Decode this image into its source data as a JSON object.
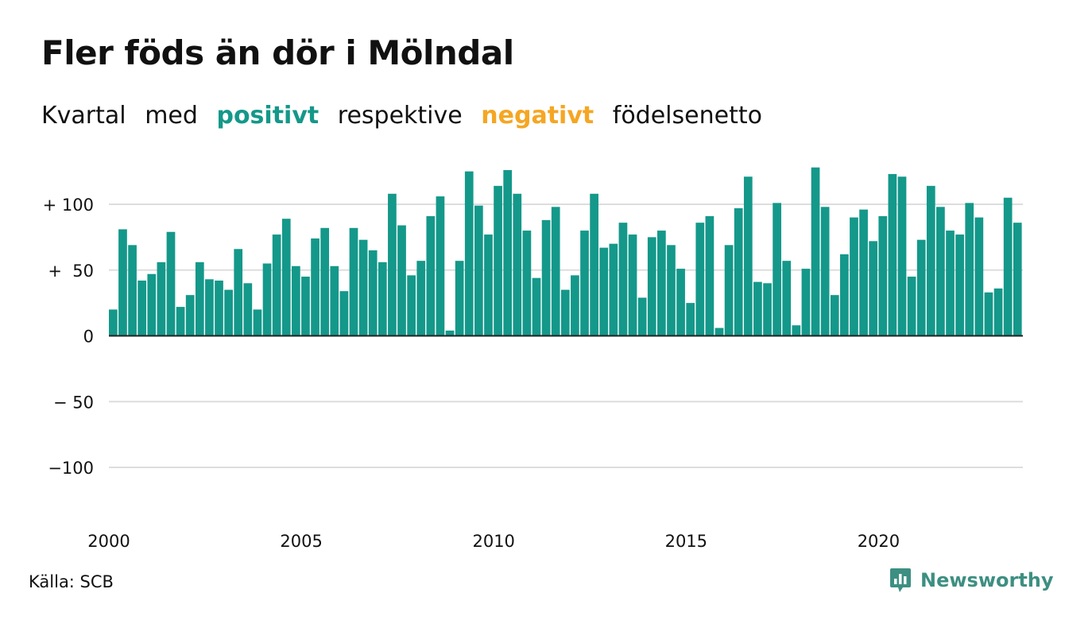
{
  "title": "Fler föds än dör i Mölndal",
  "subtitle": {
    "part1": "Kvartal",
    "part2": "med",
    "positive_word": "positivt",
    "part3": "respektive",
    "negative_word": "negativt",
    "part4": "födelsenetto"
  },
  "colors": {
    "positive": "#14988a",
    "negative": "#f5a623",
    "grid": "#dddddd",
    "axis": "#222222",
    "text": "#111111"
  },
  "source": "Källa: SCB",
  "brand": {
    "name": "Newsworthy",
    "icon": "newsworthy-logo-icon"
  },
  "chart_data": {
    "type": "bar",
    "title": "Fler föds än dör i Mölndal",
    "xlabel": "",
    "ylabel": "",
    "ylim": [
      -140,
      140
    ],
    "y_ticks": [
      {
        "value": 100,
        "label": "+ 100"
      },
      {
        "value": 50,
        "label": "+  50"
      },
      {
        "value": 0,
        "label": "0"
      },
      {
        "value": -50,
        "label": "− 50"
      },
      {
        "value": -100,
        "label": "−100"
      }
    ],
    "x_ticks": [
      {
        "year": 2000,
        "label": "2000"
      },
      {
        "year": 2005,
        "label": "2005"
      },
      {
        "year": 2010,
        "label": "2010"
      },
      {
        "year": 2015,
        "label": "2015"
      },
      {
        "year": 2020,
        "label": "2020"
      }
    ],
    "grid": true,
    "legend": "none",
    "start_year": 2000,
    "values": [
      20,
      81,
      69,
      42,
      47,
      56,
      79,
      22,
      31,
      56,
      43,
      42,
      35,
      66,
      40,
      20,
      55,
      77,
      89,
      53,
      45,
      74,
      82,
      53,
      34,
      82,
      73,
      65,
      56,
      108,
      84,
      46,
      57,
      91,
      106,
      4,
      57,
      125,
      99,
      77,
      114,
      126,
      108,
      80,
      44,
      88,
      98,
      35,
      46,
      80,
      108,
      67,
      70,
      86,
      77,
      29,
      75,
      80,
      69,
      51,
      25,
      86,
      91,
      6,
      69,
      97,
      121,
      41,
      40,
      101,
      57,
      8,
      51,
      128,
      98,
      31,
      62,
      90,
      96,
      72,
      91,
      123,
      121,
      45,
      73,
      114,
      98,
      80,
      77,
      101,
      90,
      33,
      36,
      105,
      86
    ]
  }
}
